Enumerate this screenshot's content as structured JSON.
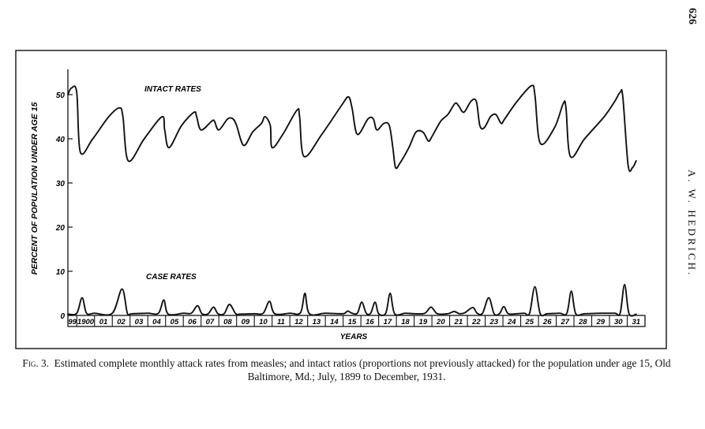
{
  "page": {
    "number": "626",
    "running_head": "A. W. HEDRICH."
  },
  "caption": {
    "fig_label": "Fig. 3.",
    "text": "Estimated complete monthly attack rates from measles; and intact ratios (proportions not previously attacked) for the population under age 15, Old Baltimore, Md.; July, 1899 to December, 1931."
  },
  "chart_data": {
    "type": "line",
    "ylabel": "PERCENT OF POPULATION UNDER AGE 15",
    "xlabel": "YEARS",
    "ylim": [
      0,
      55
    ],
    "yticks": [
      "0",
      "10",
      "20",
      "30",
      "40",
      "50"
    ],
    "ytick_values": [
      0,
      10,
      20,
      30,
      40,
      50
    ],
    "grid": false,
    "x_start": 1899.5,
    "x_end": 1932,
    "year_labels": [
      "99",
      "1900",
      "01",
      "02",
      "03",
      "04",
      "05",
      "06",
      "07",
      "08",
      "09",
      "10",
      "11",
      "12",
      "13",
      "14",
      "15",
      "16",
      "17",
      "18",
      "19",
      "20",
      "21",
      "22",
      "23",
      "24",
      "25",
      "26",
      "27",
      "28",
      "29",
      "30",
      "31"
    ],
    "year_starts": [
      1899.5,
      1900,
      1901,
      1902,
      1903,
      1904,
      1905,
      1906,
      1907,
      1908,
      1909,
      1910,
      1911,
      1912,
      1913,
      1914,
      1915,
      1916,
      1917,
      1918,
      1919,
      1920,
      1921,
      1922,
      1923,
      1924,
      1925,
      1926,
      1927,
      1928,
      1929,
      1930,
      1931
    ],
    "series": [
      {
        "name": "INTACT RATES",
        "x": [
          1899.5,
          1899.7,
          1900.0,
          1900.2,
          1900.9,
          1901.8,
          1902.4,
          1902.6,
          1902.9,
          1903.8,
          1904.8,
          1904.95,
          1905.2,
          1905.9,
          1906.6,
          1906.75,
          1907.0,
          1907.6,
          1907.75,
          1908.0,
          1908.5,
          1908.8,
          1909.0,
          1909.4,
          1909.9,
          1910.4,
          1910.6,
          1910.9,
          1911.0,
          1911.6,
          1912.4,
          1912.55,
          1912.8,
          1913.8,
          1914.9,
          1915.3,
          1915.5,
          1915.8,
          1916.4,
          1916.7,
          1916.9,
          1917.3,
          1917.6,
          1917.8,
          1917.95,
          1918.2,
          1918.7,
          1919.1,
          1919.5,
          1919.8,
          1920.0,
          1920.5,
          1920.9,
          1921.3,
          1921.5,
          1921.8,
          1922.2,
          1922.5,
          1922.7,
          1922.95,
          1923.3,
          1923.6,
          1923.9,
          1924.1,
          1924.8,
          1925.6,
          1925.8,
          1926.1,
          1926.9,
          1927.4,
          1927.55,
          1927.8,
          1928.6,
          1929.7,
          1930.3,
          1930.6,
          1930.75,
          1931.05,
          1931.3,
          1931.5
        ],
        "values": [
          50.0,
          51.5,
          50.5,
          37.0,
          40.0,
          45.0,
          47.0,
          45.0,
          35.0,
          40.0,
          45.0,
          42.0,
          38.0,
          43.0,
          46.0,
          45.0,
          42.0,
          44.0,
          44.0,
          42.0,
          44.5,
          44.5,
          43.0,
          38.5,
          41.5,
          43.5,
          45.0,
          43.0,
          38.0,
          41.0,
          46.5,
          45.0,
          36.0,
          41.0,
          47.5,
          49.5,
          47.0,
          41.0,
          44.5,
          44.5,
          42.0,
          43.5,
          43.0,
          38.0,
          33.5,
          34.5,
          38.0,
          41.5,
          41.5,
          39.5,
          40.5,
          44.0,
          45.5,
          48.0,
          47.5,
          46.0,
          48.5,
          48.5,
          43.0,
          42.5,
          45.0,
          45.5,
          43.5,
          44.5,
          48.5,
          52.0,
          50.0,
          39.0,
          42.5,
          48.0,
          47.0,
          36.0,
          40.0,
          45.0,
          48.5,
          50.5,
          49.5,
          34.0,
          33.5,
          35.0
        ]
      },
      {
        "name": "CASE RATES",
        "x": [
          1899.5,
          1900.0,
          1900.3,
          1900.55,
          1901.0,
          1902.0,
          1902.55,
          1902.85,
          1903.1,
          1904.0,
          1904.6,
          1904.9,
          1905.15,
          1906.0,
          1906.45,
          1906.8,
          1907.05,
          1907.4,
          1907.7,
          1907.95,
          1908.3,
          1908.6,
          1908.95,
          1909.2,
          1910.0,
          1910.5,
          1910.85,
          1911.15,
          1912.0,
          1912.6,
          1912.85,
          1913.1,
          1914.0,
          1915.0,
          1915.25,
          1915.5,
          1915.8,
          1916.05,
          1916.3,
          1916.55,
          1916.8,
          1917.0,
          1917.4,
          1917.65,
          1917.9,
          1918.5,
          1919.0,
          1919.6,
          1919.95,
          1920.3,
          1920.9,
          1921.25,
          1921.55,
          1921.85,
          1922.3,
          1922.55,
          1922.85,
          1923.2,
          1923.5,
          1923.8,
          1924.05,
          1924.3,
          1924.8,
          1925.2,
          1925.5,
          1925.8,
          1926.1,
          1926.5,
          1927.2,
          1927.6,
          1927.85,
          1928.1,
          1928.6,
          1929.5,
          1930.3,
          1930.6,
          1930.85,
          1931.1,
          1931.5
        ],
        "values": [
          0.3,
          0.5,
          4.0,
          0.5,
          0.5,
          0.5,
          6.0,
          0.5,
          0.4,
          0.5,
          0.5,
          3.5,
          0.3,
          0.5,
          0.5,
          2.2,
          0.4,
          0.4,
          1.9,
          0.4,
          0.4,
          2.5,
          0.4,
          0.3,
          0.4,
          0.5,
          3.2,
          0.4,
          0.5,
          0.6,
          5.0,
          0.4,
          0.5,
          0.4,
          1.0,
          0.5,
          0.5,
          3.0,
          0.5,
          0.5,
          3.0,
          0.4,
          0.5,
          5.0,
          0.4,
          0.5,
          0.4,
          0.5,
          1.9,
          0.4,
          0.4,
          0.9,
          0.4,
          0.6,
          1.8,
          0.5,
          0.5,
          4.0,
          0.4,
          0.4,
          2.0,
          0.4,
          0.4,
          0.5,
          0.5,
          6.5,
          0.4,
          0.4,
          0.5,
          0.5,
          5.5,
          0.4,
          0.4,
          0.5,
          0.5,
          0.5,
          7.0,
          0.4,
          0.3
        ]
      }
    ]
  }
}
